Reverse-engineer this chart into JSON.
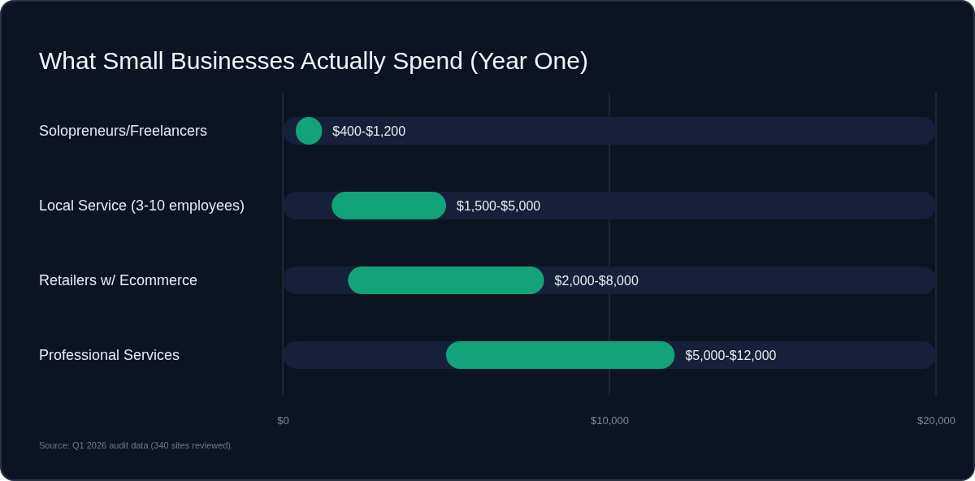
{
  "chart_data": {
    "type": "bar",
    "orientation": "horizontal",
    "title": "What Small Businesses Actually Spend (Year One)",
    "categories": [
      "Solopreneurs/Freelancers",
      "Local Service (3-10 employees)",
      "Retailers w/ Ecommerce",
      "Professional Services"
    ],
    "base": [
      400,
      1500,
      2000,
      5000
    ],
    "values": [
      800,
      3500,
      6000,
      7000
    ],
    "value_labels": [
      "$400-$1,200",
      "$1,500-$5,000",
      "$2,000-$8,000",
      "$5,000-$12,000"
    ],
    "color": "#12a37a",
    "xlim": [
      0,
      20000
    ],
    "xticks": [
      {
        "value": 0,
        "label": "$0"
      },
      {
        "value": 10000,
        "label": "$10,000"
      },
      {
        "value": 20000,
        "label": "$20,000"
      }
    ],
    "grid": "x",
    "annotations": [
      "Source: Q1 2026 audit data (340 sites reviewed)."
    ]
  }
}
